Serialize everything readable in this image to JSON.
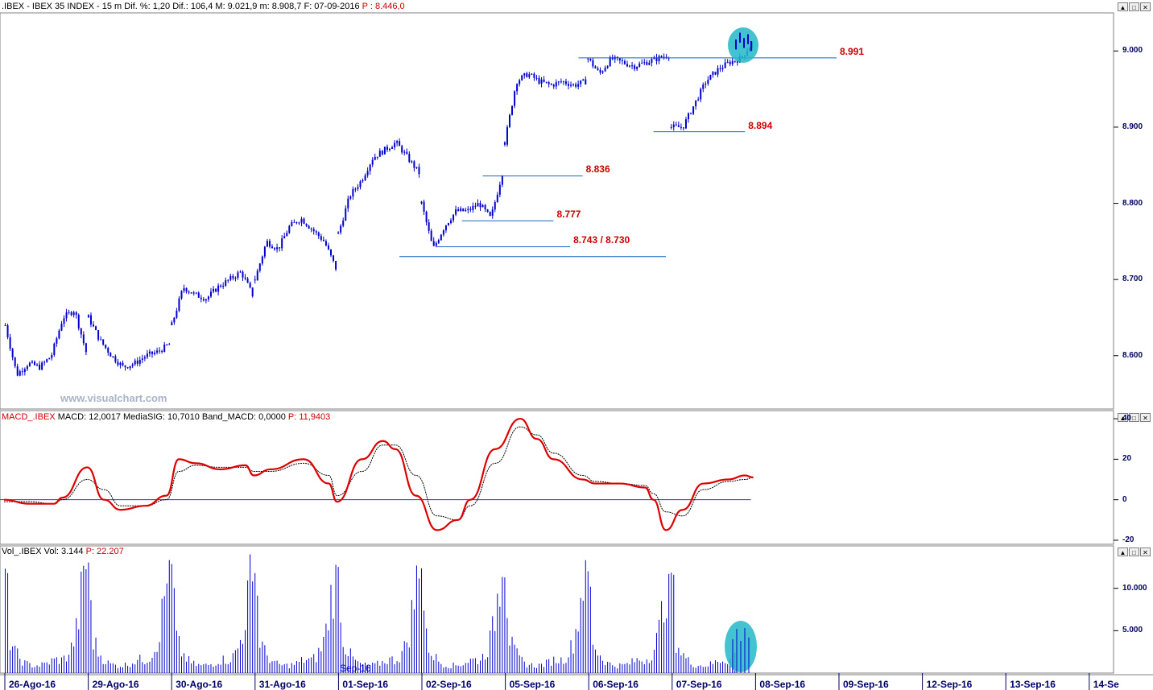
{
  "header": {
    "symbol": ".IBEX",
    "name": "IBEX 35 INDEX",
    "interval": "15 m",
    "stats": "Dif. %: 1,20  Dif.: 106,4  M: 9.021,9  m: 8.908,7  F: 07-09-2016",
    "last_price": "P : 8.446,0"
  },
  "macd_header": {
    "label": "MACD_.IBEX",
    "values": "MACD: 12,0017  MediaSIG: 10,7010  Band_MACD: 0,0000",
    "last": "P: 11,9403"
  },
  "vol_header": {
    "label": "Vol_.IBEX",
    "value": "Vol: 3.144",
    "last": "P: 22.207"
  },
  "watermark": "www.visualchart.com",
  "month_label": "Sep-16",
  "window_buttons": [
    "▲",
    "□",
    "✕"
  ],
  "colors": {
    "price": "#0000cc",
    "macd": "#dd0000",
    "signal": "#000000",
    "level_line": "#1565c0",
    "level_text": "#cc0000",
    "highlight": "#22b8c8",
    "axis_text": "#000066"
  },
  "chart_data": [
    {
      "type": "candlestick",
      "title": "IBEX 35 INDEX 15 m",
      "ylim": [
        8530,
        9050
      ],
      "y_ticks": [
        "9.000",
        "8.900",
        "8.800",
        "8.700",
        "8.600"
      ],
      "x_ticks": [
        "26-Ago-16",
        "29-Ago-16",
        "30-Ago-16",
        "31-Ago-16",
        "01-Sep-16",
        "02-Sep-16",
        "05-Sep-16",
        "06-Sep-16",
        "07-Sep-16",
        "08-Sep-16",
        "09-Sep-16",
        "12-Sep-16",
        "13-Sep-16",
        "14-Se"
      ],
      "session_closes": [
        [
          8640,
          8575,
          8590,
          8585,
          8600,
          8650,
          8660,
          8605
        ],
        [
          8650,
          8620,
          8600,
          8585,
          8590,
          8600,
          8605,
          8615
        ],
        [
          8640,
          8690,
          8680,
          8675,
          8690,
          8700,
          8710,
          8680
        ],
        [
          8700,
          8750,
          8740,
          8770,
          8780,
          8765,
          8750,
          8715
        ],
        [
          8760,
          8810,
          8830,
          8860,
          8870,
          8880,
          8860,
          8840
        ],
        [
          8800,
          8740,
          8770,
          8790,
          8790,
          8800,
          8780,
          8840
        ],
        [
          8880,
          8960,
          8970,
          8960,
          8955,
          8960,
          8955,
          8960
        ],
        [
          8990,
          8970,
          8990,
          8985,
          8980,
          8985,
          8990,
          8995
        ],
        [
          8900,
          8900,
          8930,
          8960,
          8975,
          8985,
          8990,
          9010
        ]
      ],
      "levels": [
        {
          "label": "8.991",
          "value": 8991,
          "from": 6.9,
          "to": 10.0
        },
        {
          "label": "8.894",
          "value": 8894,
          "from": 7.8,
          "to": 8.9
        },
        {
          "label": "8.836",
          "value": 8836,
          "from": 5.75,
          "to": 6.95
        },
        {
          "label": "8.777",
          "value": 8777,
          "from": 5.5,
          "to": 6.6
        },
        {
          "label": "8.743 / 8.730",
          "value": 8743,
          "from": 5.2,
          "to": 6.8
        },
        {
          "label": "",
          "value": 8730,
          "from": 4.75,
          "to": 7.95
        }
      ]
    },
    {
      "type": "line",
      "title": "MACD",
      "ylim": [
        -22,
        44
      ],
      "y_ticks": [
        40,
        20,
        0,
        -20
      ],
      "series": [
        {
          "name": "MACD",
          "x": [
            0,
            0.3,
            0.6,
            0.7,
            1.0,
            1.2,
            1.4,
            1.7,
            1.95,
            2.1,
            2.3,
            2.6,
            2.9,
            3.0,
            3.2,
            3.6,
            3.9,
            4.0,
            4.3,
            4.55,
            4.7,
            4.95,
            5.2,
            5.45,
            5.6,
            5.9,
            6.2,
            6.4,
            6.6,
            6.95,
            7.1,
            7.4,
            7.7,
            7.8,
            7.95,
            8.15,
            8.4,
            8.7,
            8.9,
            9.0
          ],
          "values": [
            0,
            -2,
            -2,
            1,
            16,
            0,
            -5,
            -3,
            2,
            20,
            18,
            15,
            17,
            12,
            15,
            20,
            8,
            -1,
            20,
            29,
            25,
            2,
            -15,
            -10,
            0,
            25,
            40,
            30,
            20,
            10,
            8,
            8,
            6,
            0,
            -15,
            -5,
            8,
            10,
            12,
            11
          ]
        },
        {
          "name": "MediaSIG",
          "x": [
            0,
            0.3,
            0.6,
            0.7,
            1.0,
            1.2,
            1.4,
            1.7,
            1.95,
            2.1,
            2.3,
            2.6,
            2.9,
            3.0,
            3.2,
            3.6,
            3.9,
            4.0,
            4.3,
            4.55,
            4.7,
            4.95,
            5.2,
            5.45,
            5.6,
            5.9,
            6.2,
            6.4,
            6.6,
            6.95,
            7.1,
            7.4,
            7.7,
            7.8,
            7.95,
            8.15,
            8.4,
            8.7,
            8.9,
            9.0
          ],
          "values": [
            -1,
            -1,
            -2,
            0,
            10,
            5,
            -3,
            -3,
            0,
            14,
            17,
            16,
            16,
            14,
            14,
            18,
            12,
            2,
            14,
            27,
            27,
            12,
            -8,
            -10,
            -3,
            18,
            36,
            32,
            23,
            12,
            9,
            8,
            7,
            3,
            -6,
            -8,
            5,
            9,
            10,
            11
          ]
        }
      ]
    },
    {
      "type": "bar",
      "title": "Volume",
      "ylim": [
        0,
        15000
      ],
      "y_ticks": [
        "10.000",
        "5.000"
      ],
      "session_profile": [
        13500,
        4000,
        2500,
        1800,
        1200,
        1000,
        900,
        900,
        1000,
        1200,
        1500,
        1600,
        1500,
        2000,
        3000,
        5000,
        9000,
        12000
      ]
    }
  ]
}
